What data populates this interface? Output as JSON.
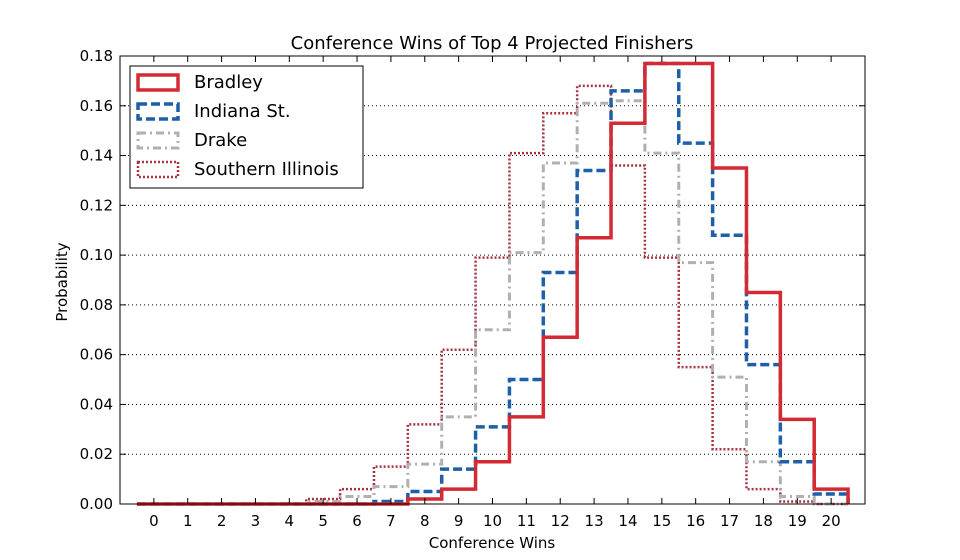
{
  "chart_data": {
    "type": "histogram-step",
    "title": "Conference Wins of Top 4 Projected Finishers",
    "xlabel": "Conference Wins",
    "ylabel": "Probability",
    "x_ticks": [
      0,
      1,
      2,
      3,
      4,
      5,
      6,
      7,
      8,
      9,
      10,
      11,
      12,
      13,
      14,
      15,
      16,
      17,
      18,
      19,
      20
    ],
    "xlim": [
      -1,
      21
    ],
    "ylim": [
      0,
      0.18
    ],
    "y_ticks": [
      "0.00",
      "0.02",
      "0.04",
      "0.06",
      "0.08",
      "0.10",
      "0.12",
      "0.14",
      "0.16",
      "0.18"
    ],
    "grid": "horizontal-dotted",
    "legend_position": "top-left",
    "categories": [
      0,
      1,
      2,
      3,
      4,
      5,
      6,
      7,
      8,
      9,
      10,
      11,
      12,
      13,
      14,
      15,
      16,
      17,
      18,
      19,
      20
    ],
    "series": [
      {
        "name": "Southern Illinois",
        "color": "#a8323f",
        "style": "dotted",
        "values": [
          0,
          0,
          0,
          0,
          0,
          0.002,
          0.006,
          0.015,
          0.032,
          0.062,
          0.099,
          0.141,
          0.157,
          0.168,
          0.136,
          0.099,
          0.055,
          0.022,
          0.006,
          0.001,
          0
        ]
      },
      {
        "name": "Drake",
        "color": "#b0b0b0",
        "style": "dashdot",
        "values": [
          0,
          0,
          0,
          0,
          0,
          0.001,
          0.003,
          0.007,
          0.016,
          0.035,
          0.07,
          0.101,
          0.137,
          0.161,
          0.162,
          0.141,
          0.097,
          0.051,
          0.017,
          0.003,
          0
        ]
      },
      {
        "name": "Indiana St.",
        "color": "#1f5fa8",
        "style": "dashed",
        "values": [
          0,
          0,
          0,
          0,
          0,
          0,
          0,
          0.001,
          0.005,
          0.014,
          0.031,
          0.05,
          0.093,
          0.134,
          0.166,
          0.177,
          0.145,
          0.108,
          0.056,
          0.017,
          0.004
        ]
      },
      {
        "name": "Bradley",
        "color": "#d42a33",
        "style": "solid",
        "values": [
          0,
          0,
          0,
          0,
          0,
          0,
          0,
          0,
          0.002,
          0.006,
          0.017,
          0.035,
          0.067,
          0.107,
          0.153,
          0.177,
          0.177,
          0.135,
          0.085,
          0.034,
          0.006
        ]
      }
    ],
    "legend": [
      "Bradley",
      "Indiana St.",
      "Drake",
      "Southern Illinois"
    ]
  }
}
